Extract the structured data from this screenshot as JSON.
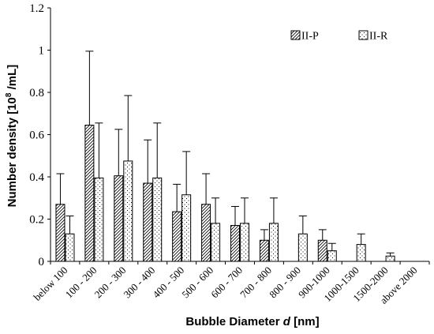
{
  "chart_data": {
    "type": "bar",
    "xlabel_prefix": "Bubble Diameter ",
    "xlabel_var": "d",
    "xlabel_suffix": " [nm]",
    "ylabel_main": "Number density [10",
    "ylabel_sup": "8",
    "ylabel_tail": " /mL]",
    "ylim": [
      0,
      1.2
    ],
    "yticks": [
      "0",
      "0.2",
      "0.4",
      "0.6",
      "0.8",
      "1",
      "1.2"
    ],
    "categories": [
      "below 100",
      "100 - 200",
      "200 - 300",
      "300 - 400",
      "400 - 500",
      "500 - 600",
      "600 - 700",
      "700 - 800",
      "800 - 900",
      "900-1000",
      "1000-1500",
      "1500-2000",
      "above 2000"
    ],
    "series": [
      {
        "name": "II-P",
        "pattern": "diagonal-hatch",
        "values": [
          0.27,
          0.645,
          0.405,
          0.37,
          0.235,
          0.27,
          0.17,
          0.1,
          null,
          0.1,
          null,
          null,
          null
        ],
        "errors": [
          0.145,
          0.35,
          0.22,
          0.205,
          0.13,
          0.145,
          0.09,
          0.05,
          null,
          0.05,
          null,
          null,
          null
        ]
      },
      {
        "name": "II-R",
        "pattern": "dots",
        "values": [
          0.13,
          0.395,
          0.475,
          0.395,
          0.315,
          0.18,
          0.18,
          0.18,
          0.13,
          0.05,
          0.08,
          0.025,
          null
        ],
        "errors": [
          0.085,
          0.26,
          0.31,
          0.26,
          0.205,
          0.12,
          0.12,
          0.12,
          0.085,
          0.035,
          0.05,
          0.015,
          null
        ]
      }
    ],
    "legend_position": "top-right",
    "grid": false,
    "colors": {
      "bar_stroke": "#000000",
      "background": "#ffffff"
    }
  }
}
